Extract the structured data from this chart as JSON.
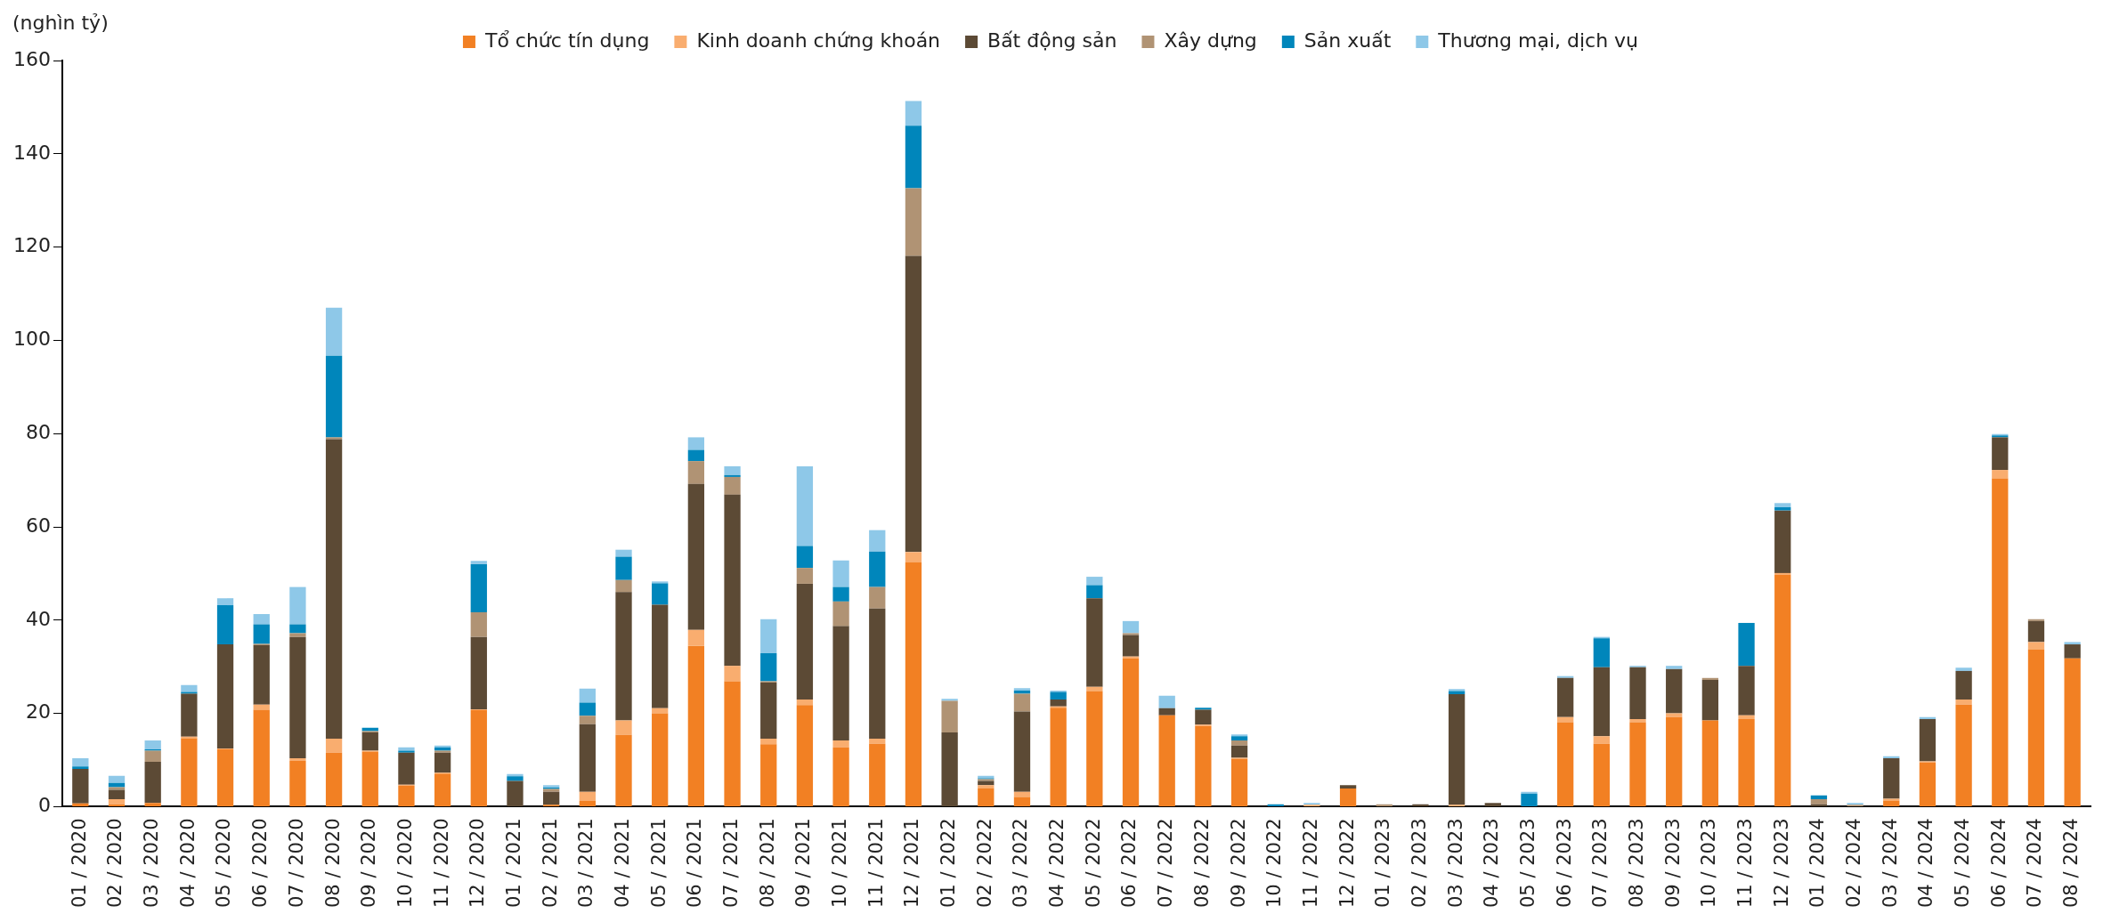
{
  "chart_data": {
    "type": "bar",
    "stacked": true,
    "ylabel": "(nghìn tỷ)",
    "ylim": [
      0,
      160
    ],
    "yticks": [
      0,
      20,
      40,
      60,
      80,
      100,
      120,
      140,
      160
    ],
    "grid": false,
    "legend": "top",
    "categories": [
      "01 / 2020",
      "02 / 2020",
      "03 / 2020",
      "04 / 2020",
      "05 / 2020",
      "06 / 2020",
      "07 / 2020",
      "08 / 2020",
      "09 / 2020",
      "10 / 2020",
      "11 / 2020",
      "12 / 2020",
      "01 / 2021",
      "02 / 2021",
      "03 / 2021",
      "04 / 2021",
      "05 / 2021",
      "06 / 2021",
      "07 / 2021",
      "08 / 2021",
      "09 / 2021",
      "10 / 2021",
      "11 / 2021",
      "12 / 2021",
      "01 / 2022",
      "02 / 2022",
      "03 / 2022",
      "04 / 2022",
      "05 / 2022",
      "06 / 2022",
      "07 / 2022",
      "08 / 2022",
      "09 / 2022",
      "10 / 2022",
      "11 / 2022",
      "12 / 2022",
      "01 / 2023",
      "02 / 2023",
      "03 / 2023",
      "04 / 2023",
      "05 / 2023",
      "06 / 2023",
      "07 / 2023",
      "08 / 2023",
      "09 / 2023",
      "10 / 2023",
      "11 / 2023",
      "12 / 2023",
      "01 / 2024",
      "02 / 2024",
      "03 / 2024",
      "04 / 2024",
      "05 / 2024",
      "06 / 2024",
      "07 / 2024",
      "08 / 2024"
    ],
    "series": [
      {
        "name": "Tổ chức tín dụng",
        "color": "#f28023",
        "values": [
          0.7,
          0.5,
          0.8,
          14.7,
          12.3,
          20.8,
          9.8,
          11.6,
          11.8,
          4.5,
          7.1,
          20.7,
          0,
          0.4,
          1.2,
          15.4,
          20.0,
          34.5,
          26.9,
          13.4,
          21.8,
          12.7,
          13.5,
          52.4,
          0,
          4.0,
          2.1,
          21.2,
          24.8,
          31.8,
          19.6,
          17.3,
          10.2,
          0,
          0,
          3.9,
          0,
          0,
          0,
          0,
          0,
          18.1,
          13.5,
          18.1,
          19.2,
          18.5,
          18.8,
          49.8,
          0,
          0,
          1.3,
          9.5,
          21.9,
          70.4,
          33.7,
          31.8
        ]
      },
      {
        "name": "Kinh doanh chứng khoán",
        "color": "#f9ad6f",
        "values": [
          0,
          1.1,
          0,
          0.3,
          0.2,
          1.1,
          0.6,
          3.0,
          0.2,
          0.2,
          0.2,
          0.2,
          0,
          0,
          2.0,
          3.1,
          1.1,
          3.4,
          3.3,
          1.2,
          1.2,
          1.5,
          1.1,
          2.2,
          0,
          0.6,
          1.1,
          0.3,
          0.9,
          0.4,
          0,
          0.3,
          0.3,
          0,
          0.4,
          0,
          0,
          0,
          0.4,
          0,
          0,
          1.1,
          1.6,
          0.7,
          0.8,
          0,
          0.8,
          0.3,
          0,
          0,
          0.4,
          0.2,
          1.1,
          1.8,
          1.6,
          0
        ]
      },
      {
        "name": "Bất động sản",
        "color": "#5c4a35",
        "values": [
          7.4,
          2.0,
          8.8,
          9.2,
          22.3,
          12.7,
          26.0,
          64.2,
          3.9,
          6.9,
          4.3,
          15.5,
          5.5,
          2.8,
          14.5,
          27.5,
          22.2,
          31.3,
          36.7,
          12.0,
          24.8,
          24.5,
          27.9,
          63.5,
          15.9,
          0.9,
          17.2,
          1.5,
          19.0,
          4.6,
          1.5,
          3.2,
          2.6,
          0,
          0,
          0.7,
          0,
          0.5,
          23.7,
          0.8,
          0,
          8.4,
          14.8,
          11.1,
          9.5,
          8.7,
          10.6,
          13.4,
          0.5,
          0,
          8.7,
          9.1,
          6.1,
          7.0,
          4.5,
          3.0
        ]
      },
      {
        "name": "Xây dựng",
        "color": "#b09374",
        "values": [
          0,
          0.6,
          2.4,
          0,
          0,
          0.3,
          0.8,
          0.4,
          0.3,
          0,
          0.4,
          5.3,
          0,
          0.6,
          1.8,
          2.6,
          0,
          4.9,
          3.8,
          0.3,
          3.4,
          5.3,
          4.6,
          14.5,
          6.8,
          0.4,
          3.8,
          0,
          0,
          0.4,
          0,
          0,
          1.1,
          0,
          0,
          0,
          0.5,
          0,
          0,
          0,
          0,
          0,
          0,
          0,
          0,
          0.4,
          0,
          0,
          1.1,
          0.4,
          0,
          0,
          0,
          0,
          0.4,
          0
        ]
      },
      {
        "name": "Sản xuất",
        "color": "#0086bb",
        "values": [
          0.5,
          0.9,
          0.3,
          0.4,
          8.4,
          4.2,
          1.9,
          17.5,
          0.7,
          0.4,
          0.7,
          10.3,
          1.0,
          0.3,
          2.8,
          5.0,
          4.6,
          2.4,
          0.4,
          6.0,
          4.7,
          3.1,
          7.6,
          13.4,
          0,
          0.2,
          0.7,
          1.6,
          2.8,
          0,
          0,
          0.4,
          0.9,
          0.5,
          0,
          0,
          0,
          0,
          0.7,
          0,
          2.8,
          0,
          6.2,
          0,
          0,
          0,
          9.2,
          0.7,
          0.8,
          0,
          0,
          0,
          0,
          0.4,
          0,
          0
        ]
      },
      {
        "name": "Thương mại, dịch vụ",
        "color": "#8ec8e8",
        "values": [
          1.8,
          1.5,
          1.9,
          1.5,
          1.5,
          2.2,
          8.0,
          10.3,
          0,
          0.7,
          0.4,
          0.7,
          0.5,
          0.5,
          3.0,
          1.5,
          0.4,
          2.7,
          1.9,
          7.3,
          17.1,
          5.7,
          4.6,
          5.3,
          0.4,
          0.5,
          0.5,
          0.3,
          1.8,
          2.6,
          2.7,
          0,
          0.4,
          0,
          0.4,
          0,
          0,
          0,
          0.4,
          0,
          0.4,
          0.4,
          0.3,
          0.3,
          0.7,
          0,
          0,
          0.9,
          0,
          0.4,
          0.4,
          0.4,
          0.7,
          0.3,
          0,
          0.5
        ]
      }
    ]
  }
}
